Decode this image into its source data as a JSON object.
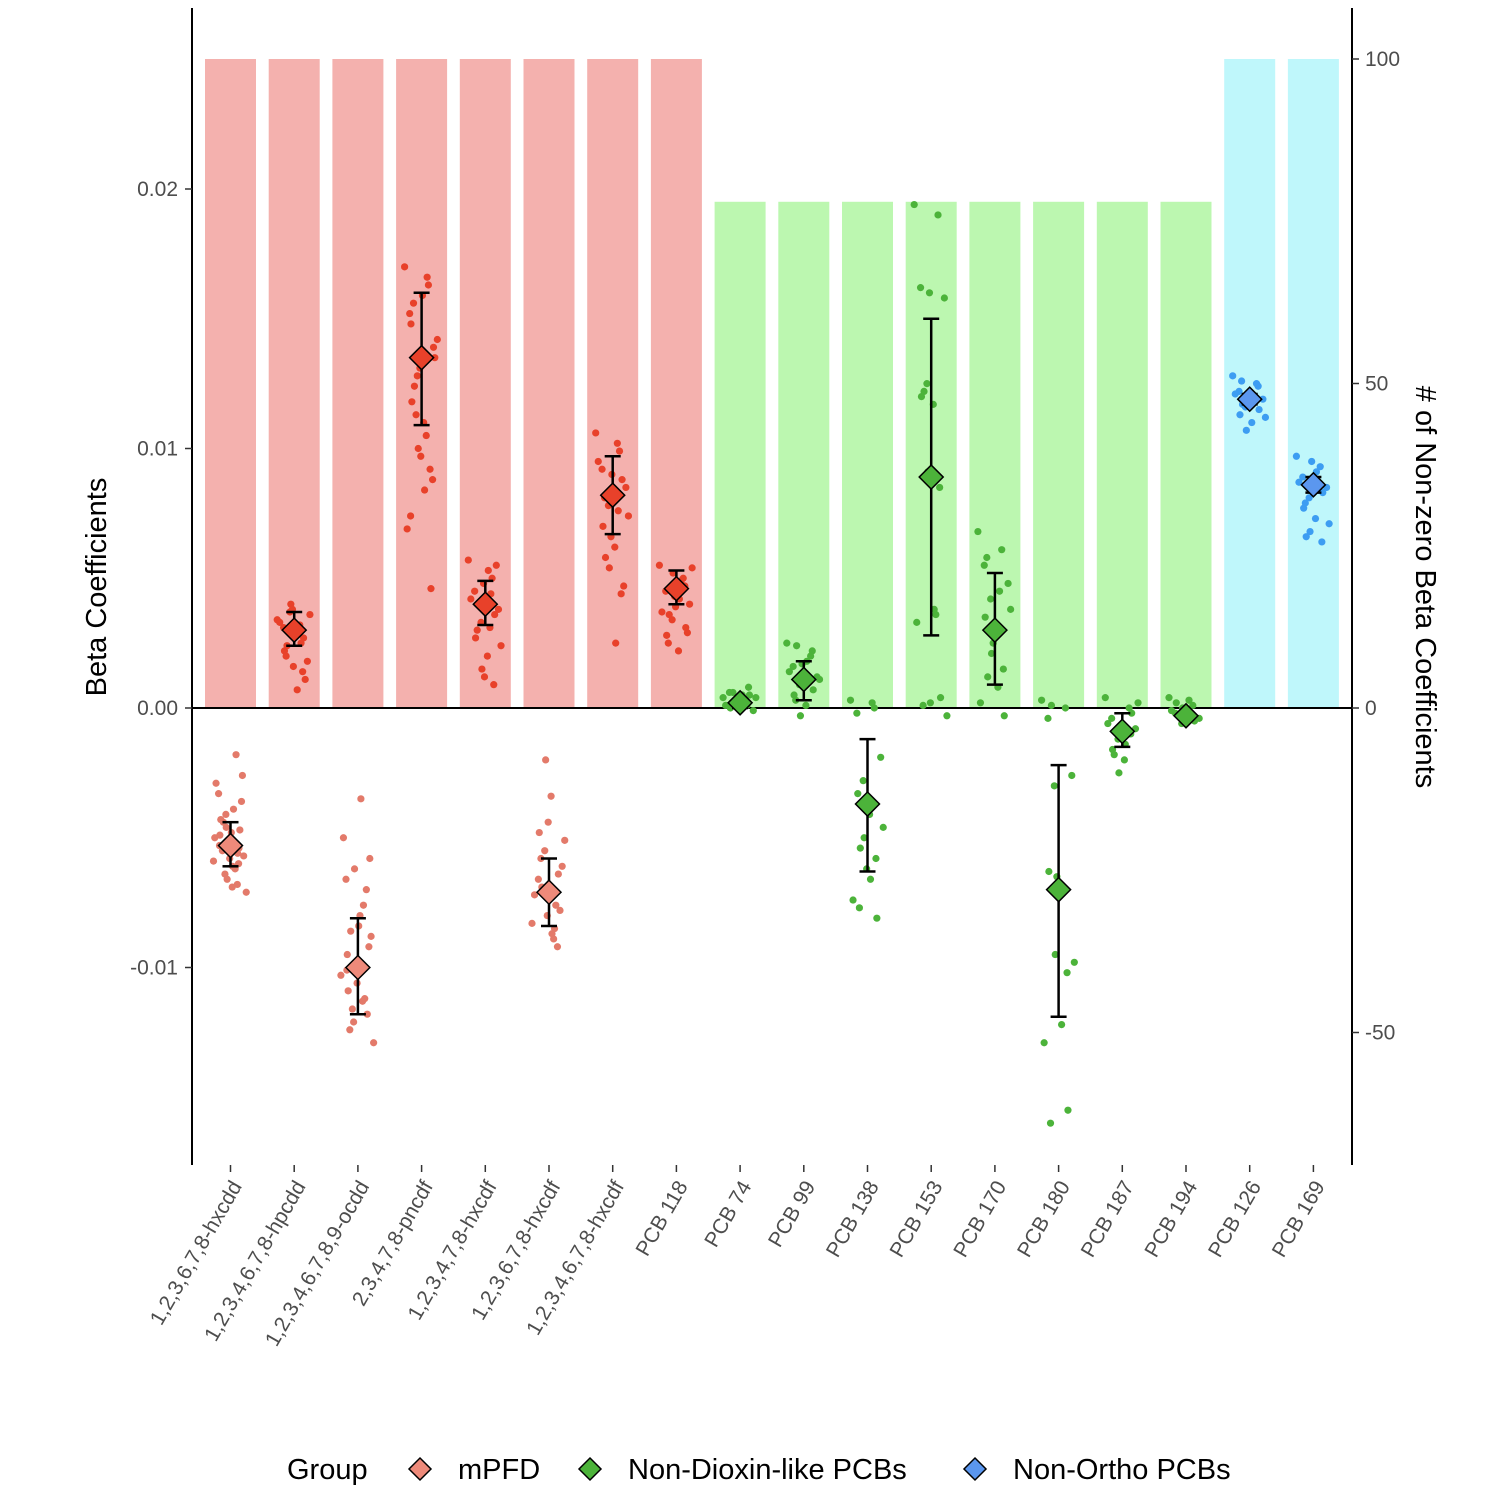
{
  "chart_data": {
    "type": "bar",
    "categories": [
      "1,2,3,6,7,8-hxcdd",
      "1,2,3,4,6,7,8-hpcdd",
      "1,2,3,4,6,7,8,9-ocdd",
      "2,3,4,7,8-pncdf",
      "1,2,3,4,7,8-hxcdf",
      "1,2,3,6,7,8-hxcdf",
      "1,2,3,4,6,7,8-hxcdf",
      "PCB 118",
      "PCB 74",
      "PCB 99",
      "PCB 138",
      "PCB 153",
      "PCB 170",
      "PCB 180",
      "PCB 187",
      "PCB 194",
      "PCB 126",
      "PCB 169"
    ],
    "groups": [
      "mPFD",
      "mPFD",
      "mPFD",
      "mPFD",
      "mPFD",
      "mPFD",
      "mPFD",
      "mPFD",
      "Non-Dioxin-like PCBs",
      "Non-Dioxin-like PCBs",
      "Non-Dioxin-like PCBs",
      "Non-Dioxin-like PCBs",
      "Non-Dioxin-like PCBs",
      "Non-Dioxin-like PCBs",
      "Non-Dioxin-like PCBs",
      "Non-Dioxin-like PCBs",
      "Non-Ortho PCBs",
      "Non-Ortho PCBs"
    ],
    "nonzero_counts": [
      100,
      100,
      100,
      100,
      100,
      100,
      100,
      100,
      78,
      78,
      78,
      78,
      78,
      78,
      78,
      78,
      100,
      100
    ],
    "mean_beta": [
      -0.0053,
      0.003,
      -0.01,
      0.0135,
      0.004,
      -0.0071,
      0.0082,
      0.0046,
      0.0002,
      0.0011,
      -0.0037,
      0.0089,
      0.003,
      -0.007,
      -0.0009,
      -0.0003,
      0.0119,
      0.0086
    ],
    "err_low": [
      -0.0061,
      0.0024,
      -0.0118,
      0.0109,
      0.0032,
      -0.0084,
      0.0067,
      0.004,
      0.0,
      0.0003,
      -0.0063,
      0.0028,
      0.0009,
      -0.0119,
      -0.0015,
      -0.0004,
      0.0117,
      0.0083
    ],
    "err_high": [
      -0.0044,
      0.0037,
      -0.0081,
      0.016,
      0.0049,
      -0.0058,
      0.0097,
      0.0053,
      0.0003,
      0.0018,
      -0.0012,
      0.015,
      0.0052,
      -0.0022,
      -0.0002,
      -0.0002,
      0.0121,
      0.0089
    ],
    "points": [
      [
        [
          -0.0059,
          -0.0068,
          -0.0049,
          -0.0057,
          -0.0046,
          -0.0043,
          -0.0061,
          -0.0066,
          -0.0054,
          -0.0039,
          -0.0029,
          -0.0047,
          -0.0055,
          -0.0071,
          -0.0052,
          -0.0044,
          -0.0062,
          -0.0058,
          -0.0036,
          -0.0018,
          -0.0033,
          -0.0026,
          -0.0064,
          -0.0053,
          -0.0048,
          -0.0041,
          -0.0056,
          -0.0069,
          -0.005,
          -0.006
        ],
        [
          0,
          1,
          0,
          1,
          0,
          1,
          0,
          1,
          0,
          1,
          0,
          1,
          0,
          1,
          0,
          1,
          0,
          1,
          0,
          1,
          0,
          1,
          0,
          1,
          0,
          1,
          0,
          1,
          0,
          1
        ]
      ],
      [
        [
          0.0034,
          0.0025,
          0.0031,
          0.0018,
          0.0037,
          0.0022,
          0.0029,
          0.004,
          0.0014,
          0.0007,
          0.0033,
          0.0027,
          0.002,
          0.0036,
          0.0038,
          0.0024,
          0.003,
          0.0016,
          0.0011,
          0.0032
        ],
        [
          0,
          1,
          0,
          1,
          0,
          1,
          0,
          1,
          0,
          1,
          0,
          1,
          0,
          1,
          0,
          1,
          0,
          1,
          0,
          1
        ]
      ],
      [
        [
          -0.0103,
          -0.0112,
          -0.0095,
          -0.0088,
          -0.0121,
          -0.0109,
          -0.008,
          -0.0062,
          -0.007,
          -0.0035,
          -0.005,
          -0.0118,
          -0.0124,
          -0.0129,
          -0.0099,
          -0.0086,
          -0.0113,
          -0.0106,
          -0.0092,
          -0.0076,
          -0.0066,
          -0.0058,
          -0.0116,
          -0.0101,
          -0.0084
        ],
        [
          0,
          1,
          0,
          1,
          0,
          1,
          0,
          1,
          0,
          1,
          0,
          1,
          0,
          1,
          0,
          1,
          0,
          1,
          0,
          1,
          0,
          1,
          0,
          1,
          0
        ]
      ],
      [
        [
          0.017,
          0.0163,
          0.0148,
          0.0135,
          0.0128,
          0.0118,
          0.011,
          0.01,
          0.0092,
          0.0084,
          0.0069,
          0.0046,
          0.0156,
          0.0142,
          0.0131,
          0.0124,
          0.0105,
          0.0097,
          0.0088,
          0.0166,
          0.0152,
          0.0139,
          0.0113,
          0.0074,
          0.0159
        ],
        [
          0,
          1,
          0,
          1,
          0,
          1,
          0,
          1,
          0,
          1,
          0,
          1,
          0,
          1,
          0,
          1,
          0,
          1,
          0,
          1,
          0,
          1,
          0,
          1,
          0
        ]
      ],
      [
        [
          0.0057,
          0.005,
          0.0045,
          0.0038,
          0.0033,
          0.0027,
          0.002,
          0.0015,
          0.0009,
          0.0053,
          0.0042,
          0.0036,
          0.003,
          0.0024,
          0.0048,
          0.004,
          0.0031,
          0.0012,
          0.0055,
          0.0044
        ],
        [
          0,
          1,
          0,
          1,
          0,
          1,
          0,
          1,
          0,
          1,
          0,
          1,
          0,
          1,
          0,
          1,
          0,
          1,
          0,
          1
        ]
      ],
      [
        [
          -0.0083,
          -0.0076,
          -0.0066,
          -0.0061,
          -0.0055,
          -0.0048,
          -0.0034,
          -0.002,
          -0.0092,
          -0.0087,
          -0.0072,
          -0.0064,
          -0.0058,
          -0.0051,
          -0.008,
          -0.0069,
          -0.0089,
          -0.0044,
          -0.0078,
          -0.0085
        ],
        [
          0,
          1,
          0,
          1,
          0,
          1,
          0,
          1,
          0,
          1,
          0,
          1,
          0,
          1,
          0,
          1,
          0,
          1,
          0,
          1
        ]
      ],
      [
        [
          0.0106,
          0.0099,
          0.0092,
          0.0085,
          0.0078,
          0.007,
          0.0062,
          0.0054,
          0.0044,
          0.0025,
          0.0095,
          0.0088,
          0.0081,
          0.0074,
          0.0066,
          0.0058,
          0.0102,
          0.009,
          0.0047,
          0.0076
        ],
        [
          0,
          1,
          0,
          1,
          0,
          1,
          0,
          1,
          0,
          1,
          0,
          1,
          0,
          1,
          0,
          1,
          0,
          1,
          0,
          1
        ]
      ],
      [
        [
          0.0055,
          0.005,
          0.0045,
          0.004,
          0.0034,
          0.0028,
          0.0022,
          0.0052,
          0.0047,
          0.0042,
          0.0037,
          0.0031,
          0.0025,
          0.0054,
          0.0043,
          0.0036,
          0.0049,
          0.0039,
          0.0029,
          0.0046
        ],
        [
          0,
          1,
          0,
          1,
          0,
          1,
          0,
          1,
          0,
          1,
          0,
          1,
          0,
          1,
          0,
          1,
          0,
          1,
          0,
          1
        ]
      ],
      [
        [
          0.0004,
          0.0001,
          0.0006,
          -0.0001,
          0.0003,
          0.0,
          0.0005,
          0.0002,
          0.0008,
          0.0003,
          0.0001,
          0.0005,
          0.0002,
          0.0004,
          0.0,
          0.0006
        ],
        [
          0,
          1,
          0,
          1,
          0,
          1,
          0,
          1,
          0,
          1,
          0,
          1,
          0,
          1,
          0,
          1
        ]
      ],
      [
        [
          0.0025,
          0.002,
          0.0016,
          0.0012,
          0.0009,
          0.0005,
          0.0001,
          -0.0003,
          0.0022,
          0.0018,
          0.0014,
          0.0007,
          0.0003,
          0.0011,
          0.0017,
          0.0024
        ],
        [
          0,
          1,
          0,
          1,
          0,
          1,
          0,
          1,
          0,
          1,
          0,
          1,
          0,
          1,
          0,
          1
        ]
      ],
      [
        [
          0.0003,
          0.0,
          -0.0002,
          -0.0019,
          -0.0028,
          -0.0033,
          -0.0041,
          -0.005,
          -0.0058,
          -0.0066,
          -0.0074,
          -0.0081,
          -0.0077,
          -0.0046,
          -0.0037,
          -0.0054,
          0.0002,
          -0.0062
        ],
        [
          0,
          1,
          0,
          1,
          0,
          1,
          0,
          1,
          0,
          1,
          0,
          1,
          0,
          1,
          0,
          1,
          0,
          1
        ]
      ],
      [
        [
          0.0194,
          0.019,
          0.0162,
          0.0158,
          0.0125,
          0.012,
          0.0117,
          0.0091,
          0.0085,
          0.0038,
          0.0033,
          0.0004,
          0.0001,
          -0.0003,
          0.016,
          0.0122,
          0.0036,
          0.0002
        ],
        [
          0,
          1,
          0,
          1,
          0,
          1,
          0,
          1,
          0,
          1,
          0,
          1,
          0,
          1,
          0,
          1,
          0,
          1
        ]
      ],
      [
        [
          0.0068,
          0.0061,
          0.0055,
          0.0048,
          0.0042,
          0.0035,
          0.0028,
          0.0021,
          0.0015,
          0.0008,
          0.0002,
          -0.0003,
          0.0058,
          0.0038,
          0.0025,
          0.0012,
          0.0045,
          0.0031
        ],
        [
          0,
          1,
          0,
          1,
          0,
          1,
          0,
          1,
          0,
          1,
          0,
          1,
          0,
          1,
          0,
          1,
          0,
          1
        ]
      ],
      [
        [
          0.0003,
          0.0,
          -0.0004,
          -0.0026,
          -0.003,
          -0.0063,
          -0.0068,
          -0.0095,
          -0.0102,
          -0.0122,
          -0.0129,
          -0.0155,
          -0.016,
          -0.0098,
          -0.0065,
          0.0001
        ],
        [
          0,
          1,
          0,
          1,
          0,
          1,
          0,
          1,
          0,
          1,
          0,
          1,
          0,
          1,
          0,
          1
        ]
      ],
      [
        [
          0.0004,
          0.0,
          -0.0004,
          -0.0008,
          -0.0012,
          -0.0016,
          -0.002,
          -0.0025,
          -0.001,
          -0.0014,
          -0.0006,
          -0.0002,
          -0.0018,
          0.0002
        ],
        [
          0,
          1,
          0,
          1,
          0,
          1,
          0,
          1,
          0,
          1,
          0,
          1,
          0,
          1
        ]
      ],
      [
        [
          0.0004,
          0.0001,
          -0.0002,
          -0.0004,
          -0.0006,
          0.0002,
          -0.0003,
          0.0,
          -0.0005,
          0.0003,
          -0.0001,
          -0.0004
        ],
        [
          0,
          1,
          0,
          1,
          0,
          1,
          0,
          1,
          0,
          1,
          0,
          1
        ]
      ],
      [
        [
          0.0128,
          0.0125,
          0.0122,
          0.0119,
          0.0116,
          0.0113,
          0.011,
          0.0107,
          0.0124,
          0.0118,
          0.0121,
          0.0115,
          0.0126,
          0.0112,
          0.012,
          0.0117
        ],
        [
          0,
          1,
          0,
          1,
          0,
          1,
          0,
          1,
          0,
          1,
          0,
          1,
          0,
          1,
          0,
          1
        ]
      ],
      [
        [
          0.0097,
          0.0093,
          0.0089,
          0.0085,
          0.0081,
          0.0077,
          0.0073,
          0.0068,
          0.0064,
          0.0091,
          0.0087,
          0.0083,
          0.0079,
          0.0071,
          0.0095,
          0.0066
        ],
        [
          0,
          1,
          0,
          1,
          0,
          1,
          0,
          1,
          0,
          1,
          0,
          1,
          0,
          1,
          0,
          1
        ]
      ]
    ],
    "ylabel": "Beta Coefficients",
    "y2label": "# of Non-zero Beta Coefficients",
    "ylim": [
      -0.0176,
      0.027
    ],
    "y2lim": [
      -70,
      130
    ],
    "yticks": [
      "0.02",
      "0.01",
      "0.00",
      "-0.01"
    ],
    "y2ticks": [
      "100",
      "50",
      "0",
      "-50"
    ],
    "legend": {
      "title": "Group",
      "entries": [
        "mPFD",
        "Non-Dioxin-like PCBs",
        "Non-Ortho PCBs"
      ],
      "position": "bottom"
    },
    "colors": {
      "mPFD_bar": "#f4b1ae",
      "mPFD_point": "#e8412a",
      "mPFD_point_neg": "#e37a6a",
      "mPFD_diamond": "#e8412a",
      "mPFD_diamond_neg": "#ee8a7a",
      "NDL_bar": "#bcf7b0",
      "NDL_point": "#4cb33a",
      "NDL_diamond": "#4cb33a",
      "NO_bar": "#bff7fb",
      "NO_point": "#3d9df2",
      "NO_diamond": "#5b97ef"
    },
    "grid": false
  }
}
